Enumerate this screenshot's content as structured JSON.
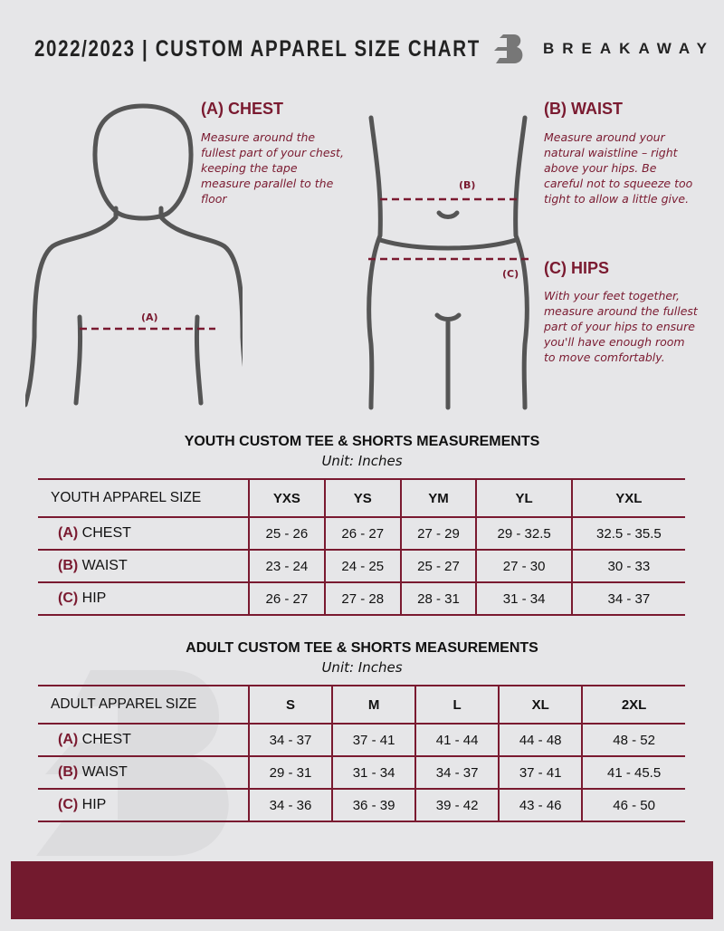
{
  "header": {
    "title": "2022/2023  |  CUSTOM APPAREL SIZE CHART",
    "brand": "BREAKAWAY"
  },
  "sections": {
    "chest": {
      "title": "(A) CHEST",
      "text": "Measure around the fullest part of your chest, keeping the tape measure parallel to the floor",
      "marker": "(A)"
    },
    "waist": {
      "title": "(B) WAIST",
      "text": "Measure around your natural waistline – right above your hips. Be careful not to squeeze too tight to allow a little give.",
      "marker": "(B)"
    },
    "hips": {
      "title": "(C) HIPS",
      "text": "With your feet together, measure around the fullest part of your hips to ensure you'll have enough room to move comfortably.",
      "marker": "(C)"
    }
  },
  "youth": {
    "title": "YOUTH CUSTOM TEE & SHORTS MEASUREMENTS",
    "unit": "Unit: Inches",
    "header": "YOUTH APPAREL SIZE",
    "sizes": [
      "YXS",
      "YS",
      "YM",
      "YL",
      "YXL"
    ],
    "rows": [
      {
        "letter": "(A)",
        "label": "CHEST",
        "values": [
          "25 - 26",
          "26 - 27",
          "27 - 29",
          "29 - 32.5",
          "32.5 - 35.5"
        ]
      },
      {
        "letter": "(B)",
        "label": "WAIST",
        "values": [
          "23 - 24",
          "24 - 25",
          "25 - 27",
          "27 - 30",
          "30 - 33"
        ]
      },
      {
        "letter": "(C)",
        "label": "HIP",
        "values": [
          "26 - 27",
          "27 - 28",
          "28 - 31",
          "31 - 34",
          "34 - 37"
        ]
      }
    ]
  },
  "adult": {
    "title": "ADULT CUSTOM TEE & SHORTS MEASUREMENTS",
    "unit": "Unit: Inches",
    "header": "ADULT APPAREL SIZE",
    "sizes": [
      "S",
      "M",
      "L",
      "XL",
      "2XL"
    ],
    "rows": [
      {
        "letter": "(A)",
        "label": "CHEST",
        "values": [
          "34 - 37",
          "37 - 41",
          "41 - 44",
          "44 - 48",
          "48 - 52"
        ]
      },
      {
        "letter": "(B)",
        "label": "WAIST",
        "values": [
          "29 - 31",
          "31 - 34",
          "34 - 37",
          "37 - 41",
          "41 - 45.5"
        ]
      },
      {
        "letter": "(C)",
        "label": "HIP",
        "values": [
          "34 - 36",
          "36 - 39",
          "39 - 42",
          "43 - 46",
          "46 - 50"
        ]
      }
    ]
  },
  "colors": {
    "accent": "#7a1a30",
    "background": "#e6e6e8"
  }
}
